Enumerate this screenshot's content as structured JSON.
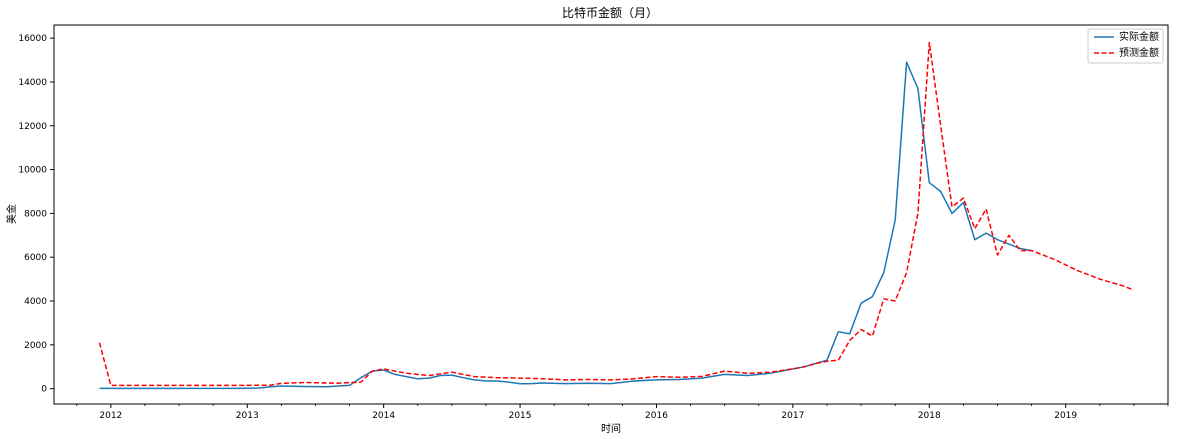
{
  "chart_data": {
    "type": "line",
    "title": "比特币金额（月）",
    "xlabel": "时间",
    "ylabel": "美金",
    "x_ticks": [
      "2012",
      "2013",
      "2014",
      "2015",
      "2016",
      "2017",
      "2018",
      "2019"
    ],
    "y_ticks": [
      0,
      2000,
      4000,
      6000,
      8000,
      10000,
      12000,
      14000,
      16000
    ],
    "xlim": [
      "2011-08",
      "2019-10"
    ],
    "ylim": [
      -700,
      16600
    ],
    "grid": false,
    "legend": "top-right",
    "series": [
      {
        "name": "实际金额",
        "color": "#1f77b4",
        "style": "solid",
        "x": [
          "2011-12",
          "2012-01",
          "2012-03",
          "2012-06",
          "2012-09",
          "2012-12",
          "2013-02",
          "2013-03",
          "2013-04",
          "2013-06",
          "2013-08",
          "2013-09",
          "2013-10",
          "2013-11",
          "2013-12",
          "2014-01",
          "2014-02",
          "2014-03",
          "2014-04",
          "2014-05",
          "2014-06",
          "2014-07",
          "2014-08",
          "2014-09",
          "2014-10",
          "2014-11",
          "2014-12",
          "2015-01",
          "2015-02",
          "2015-03",
          "2015-05",
          "2015-07",
          "2015-09",
          "2015-11",
          "2016-01",
          "2016-03",
          "2016-05",
          "2016-07",
          "2016-09",
          "2016-11",
          "2017-01",
          "2017-02",
          "2017-03",
          "2017-04",
          "2017-05",
          "2017-06",
          "2017-07",
          "2017-08",
          "2017-09",
          "2017-10",
          "2017-11",
          "2017-12",
          "2018-01",
          "2018-02",
          "2018-03",
          "2018-04",
          "2018-05",
          "2018-06",
          "2018-07",
          "2018-08",
          "2018-09",
          "2018-10"
        ],
        "values": [
          10,
          10,
          10,
          10,
          10,
          10,
          30,
          80,
          120,
          100,
          90,
          120,
          150,
          500,
          800,
          850,
          650,
          550,
          450,
          480,
          600,
          620,
          500,
          400,
          350,
          350,
          300,
          220,
          230,
          260,
          230,
          250,
          230,
          350,
          400,
          420,
          480,
          650,
          600,
          700,
          900,
          1000,
          1150,
          1300,
          2600,
          2500,
          3900,
          4200,
          5300,
          7700,
          14900,
          13700,
          9400,
          9000,
          8000,
          8500,
          6800,
          7100,
          6800,
          6600,
          6400,
          6300
        ]
      },
      {
        "name": "预测金额",
        "color": "#ff0000",
        "style": "dashed",
        "x": [
          "2011-12",
          "2012-01",
          "2012-06",
          "2012-12",
          "2013-03",
          "2013-04",
          "2013-06",
          "2013-09",
          "2013-11",
          "2013-12",
          "2014-01",
          "2014-03",
          "2014-05",
          "2014-07",
          "2014-09",
          "2014-11",
          "2015-01",
          "2015-03",
          "2015-05",
          "2015-07",
          "2015-09",
          "2015-11",
          "2016-01",
          "2016-03",
          "2016-05",
          "2016-07",
          "2016-09",
          "2016-11",
          "2017-01",
          "2017-02",
          "2017-03",
          "2017-04",
          "2017-05",
          "2017-06",
          "2017-07",
          "2017-08",
          "2017-09",
          "2017-10",
          "2017-11",
          "2017-12",
          "2018-01",
          "2018-02",
          "2018-03",
          "2018-04",
          "2018-05",
          "2018-06",
          "2018-07",
          "2018-08",
          "2018-09",
          "2018-10",
          "2018-12",
          "2019-02",
          "2019-04",
          "2019-06",
          "2019-07"
        ],
        "values": [
          2100,
          150,
          150,
          150,
          160,
          240,
          280,
          250,
          300,
          800,
          900,
          700,
          600,
          750,
          550,
          500,
          480,
          450,
          400,
          420,
          400,
          450,
          550,
          520,
          560,
          800,
          700,
          750,
          900,
          1000,
          1150,
          1250,
          1300,
          2200,
          2700,
          2400,
          4100,
          4000,
          5300,
          8000,
          15800,
          12000,
          8300,
          8700,
          7300,
          8200,
          6100,
          7000,
          6300,
          6300,
          5900,
          5400,
          5000,
          4700,
          4500
        ]
      }
    ]
  }
}
